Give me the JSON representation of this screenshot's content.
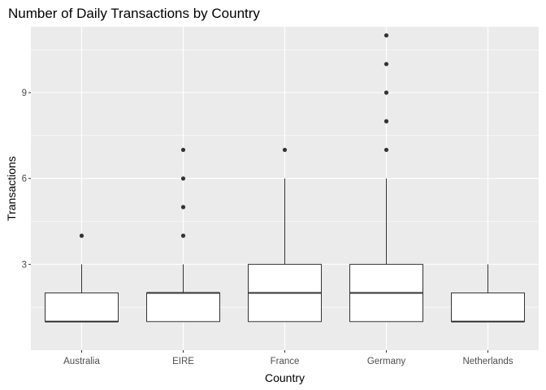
{
  "chart_data": {
    "type": "boxplot",
    "title": "Number of Daily Transactions by Country",
    "xlabel": "Country",
    "ylabel": "Transactions",
    "ylim": [
      0,
      11.3
    ],
    "yticks": [
      3,
      6,
      9
    ],
    "grid": true,
    "categories": [
      "Australia",
      "EIRE",
      "France",
      "Germany",
      "Netherlands"
    ],
    "boxes": [
      {
        "category": "Australia",
        "lower_whisker": 1,
        "q1": 1,
        "median": 1,
        "q3": 2,
        "upper_whisker": 3,
        "outliers": [
          4
        ]
      },
      {
        "category": "EIRE",
        "lower_whisker": 1,
        "q1": 1,
        "median": 2,
        "q3": 2,
        "upper_whisker": 3,
        "outliers": [
          4,
          5,
          6,
          7
        ]
      },
      {
        "category": "France",
        "lower_whisker": 1,
        "q1": 1,
        "median": 2,
        "q3": 3,
        "upper_whisker": 6,
        "outliers": [
          7
        ]
      },
      {
        "category": "Germany",
        "lower_whisker": 1,
        "q1": 1,
        "median": 2,
        "q3": 3,
        "upper_whisker": 6,
        "outliers": [
          7,
          8,
          9,
          10,
          11
        ]
      },
      {
        "category": "Netherlands",
        "lower_whisker": 1,
        "q1": 1,
        "median": 1,
        "q3": 2,
        "upper_whisker": 3,
        "outliers": []
      }
    ],
    "colors": {
      "panel": "#ebebeb",
      "grid": "#ffffff",
      "box_fill": "#ffffff",
      "box_stroke": "#333333",
      "point": "#333333"
    }
  }
}
